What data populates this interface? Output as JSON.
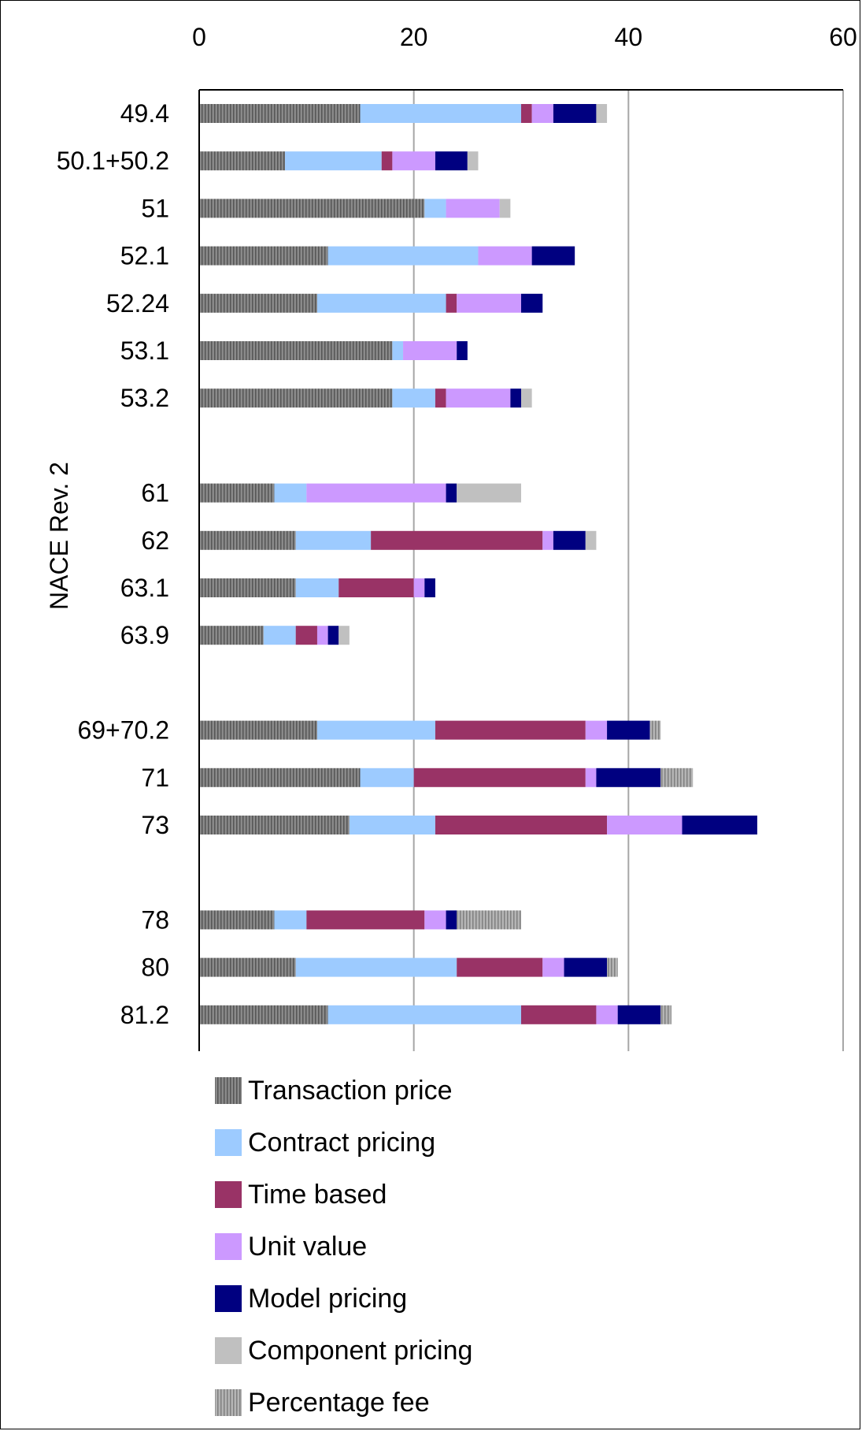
{
  "chart_data": {
    "type": "bar",
    "orientation": "horizontal",
    "stacked": true,
    "ylabel": "NACE Rev. 2",
    "xlim": [
      0,
      60
    ],
    "x_ticks": [
      "0",
      "20",
      "40",
      "60"
    ],
    "x_tick_values": [
      0,
      20,
      40,
      60
    ],
    "grid": "vertical",
    "legend_position": "bottom",
    "categories": [
      "49.4",
      "50.1+50.2",
      "51",
      "52.1",
      "52.24",
      "53.1",
      "53.2",
      "",
      "61",
      "62",
      "63.1",
      "63.9",
      "",
      "69+70.2",
      "71",
      "73",
      "",
      "78",
      "80",
      "81.2"
    ],
    "series": [
      {
        "name": "Transaction price",
        "color": "#7f7f7f",
        "pattern": "hatch-dark",
        "values": [
          15,
          8,
          21,
          12,
          11,
          18,
          18,
          null,
          7,
          9,
          9,
          6,
          null,
          11,
          15,
          14,
          null,
          7,
          9,
          12
        ]
      },
      {
        "name": "Contract pricing",
        "color": "#9dcbff",
        "pattern": "solid",
        "values": [
          15,
          9,
          2,
          14,
          12,
          1,
          4,
          null,
          3,
          7,
          4,
          3,
          null,
          11,
          5,
          8,
          null,
          3,
          15,
          18
        ]
      },
      {
        "name": "Time based",
        "color": "#993366",
        "pattern": "solid",
        "values": [
          1,
          1,
          0,
          0,
          1,
          0,
          1,
          null,
          0,
          16,
          7,
          2,
          null,
          14,
          16,
          16,
          null,
          11,
          8,
          7
        ]
      },
      {
        "name": "Unit value",
        "color": "#cc99ff",
        "pattern": "solid",
        "values": [
          2,
          4,
          5,
          5,
          6,
          5,
          6,
          null,
          13,
          1,
          1,
          1,
          null,
          2,
          1,
          7,
          null,
          2,
          2,
          2
        ]
      },
      {
        "name": "Model pricing",
        "color": "#000080",
        "pattern": "solid",
        "values": [
          4,
          3,
          0,
          4,
          2,
          1,
          1,
          null,
          1,
          3,
          1,
          1,
          null,
          4,
          6,
          7,
          null,
          1,
          4,
          4
        ]
      },
      {
        "name": "Component pricing",
        "color": "#c0c0c0",
        "pattern": "solid",
        "values": [
          1,
          1,
          1,
          0,
          0,
          0,
          1,
          null,
          6,
          1,
          0,
          1,
          null,
          0,
          0,
          0,
          null,
          0,
          0,
          0
        ]
      },
      {
        "name": "Percentage fee",
        "color": "#a6a6a6",
        "pattern": "hatch-light",
        "values": [
          0,
          0,
          0,
          0,
          0,
          0,
          0,
          null,
          0,
          0,
          0,
          0,
          null,
          1,
          3,
          0,
          null,
          6,
          1,
          1
        ]
      }
    ]
  }
}
